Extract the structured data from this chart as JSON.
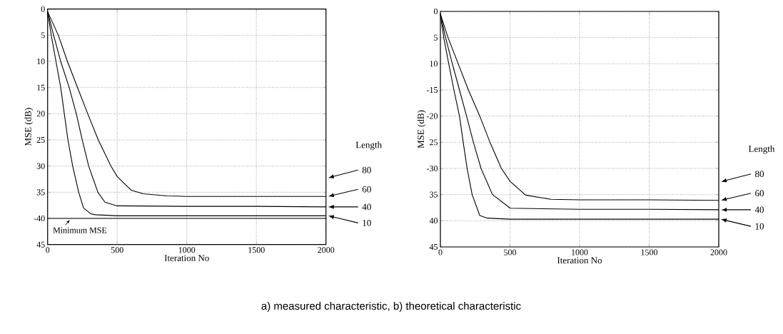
{
  "chart_data": [
    {
      "type": "line",
      "xlabel": "Iteration No",
      "ylabel": "MSE (dB)",
      "legend_title": "Length",
      "xlim": [
        0,
        2000
      ],
      "ylim": [
        -45,
        0
      ],
      "xticks": [
        0,
        500,
        1000,
        1500,
        2000
      ],
      "yticks": [
        {
          "value": 0,
          "label": "0"
        },
        {
          "value": -5,
          "label": "5"
        },
        {
          "value": -10,
          "label": "10"
        },
        {
          "value": -15,
          "label": "15"
        },
        {
          "value": -20,
          "label": "20"
        },
        {
          "value": -25,
          "label": "25"
        },
        {
          "value": -30,
          "label": "30"
        },
        {
          "value": -35,
          "label": "35"
        },
        {
          "value": -40,
          "label": "-40"
        },
        {
          "value": -45,
          "label": "45"
        }
      ],
      "grid": true,
      "legend": "right",
      "line_style": "solid",
      "marker": "none",
      "series": [
        {
          "name": "60",
          "color": "#000000",
          "x": [
            0,
            77,
            142,
            215,
            288,
            364,
            455,
            500,
            600,
            687,
            858,
            1000,
            1500,
            2000
          ],
          "values": [
            -0.5,
            -5,
            -10,
            -15,
            -20,
            -25,
            -30,
            -32,
            -34.6,
            -35.3,
            -35.7,
            -35.8,
            -35.8,
            -35.8
          ]
        },
        {
          "name": "40",
          "color": "#000000",
          "x": [
            0,
            43,
            94,
            155,
            206,
            249,
            295,
            361,
            412,
            498,
            1000,
            1500,
            2000
          ],
          "values": [
            -0.5,
            -5,
            -10,
            -15,
            -20,
            -25,
            -30,
            -35,
            -36.9,
            -37.6,
            -37.7,
            -37.7,
            -37.8
          ]
        },
        {
          "name": "10",
          "color": "#000000",
          "x": [
            0,
            26,
            60,
            94,
            120,
            146,
            180,
            223,
            258,
            309,
            343,
            500,
            1000,
            1500,
            2000
          ],
          "values": [
            -0.5,
            -5,
            -10,
            -15,
            -20,
            -25,
            -30,
            -35,
            -38,
            -39.1,
            -39.3,
            -39.5,
            -39.5,
            -39.5,
            -39.5
          ]
        }
      ],
      "ref_lines": [
        {
          "axis": "y",
          "value": -40,
          "label": "Minimum MSE",
          "color": "#000000",
          "line_style": "solid"
        }
      ],
      "annotations": [
        "80"
      ]
    },
    {
      "type": "line",
      "xlabel": "Iteration No",
      "ylabel": "MSE (dB)",
      "legend_title": "Length",
      "xlim": [
        0,
        2000
      ],
      "ylim": [
        -45,
        0
      ],
      "xticks": [
        0,
        500,
        1000,
        1500,
        2000
      ],
      "yticks": [
        {
          "value": 0,
          "label": "0"
        },
        {
          "value": -5,
          "label": "5"
        },
        {
          "value": -10,
          "label": "10"
        },
        {
          "value": -15,
          "label": "-15"
        },
        {
          "value": -20,
          "label": "-20"
        },
        {
          "value": -25,
          "label": "25"
        },
        {
          "value": -30,
          "label": "-30"
        },
        {
          "value": -35,
          "label": "35"
        },
        {
          "value": -40,
          "label": "40"
        },
        {
          "value": -45,
          "label": "45"
        }
      ],
      "grid": true,
      "legend": "right",
      "line_style": "solid",
      "marker": "none",
      "series": [
        {
          "name": "60",
          "color": "#000000",
          "x": [
            0,
            55,
            128,
            201,
            283,
            356,
            438,
            502,
            612,
            795,
            1000,
            1500,
            2000
          ],
          "values": [
            -0.5,
            -5,
            -10,
            -15,
            -20,
            -25,
            -30,
            -32.5,
            -35.1,
            -35.9,
            -36,
            -36,
            -36.1
          ]
        },
        {
          "name": "40",
          "color": "#000000",
          "x": [
            0,
            37,
            86,
            137,
            188,
            237,
            292,
            374,
            502,
            1000,
            1500,
            2000
          ],
          "values": [
            -0.5,
            -5,
            -10,
            -15,
            -20,
            -25,
            -30,
            -35,
            -37.6,
            -37.8,
            -37.8,
            -37.9
          ]
        },
        {
          "name": "10",
          "color": "#000000",
          "x": [
            0,
            24,
            60,
            97,
            137,
            164,
            192,
            228,
            283,
            338,
            500,
            1000,
            1500,
            2000
          ],
          "values": [
            -0.5,
            -5,
            -10,
            -15,
            -20,
            -25,
            -30,
            -35,
            -39,
            -39.5,
            -39.7,
            -39.7,
            -39.7,
            -39.7
          ]
        }
      ],
      "annotations": [
        "80",
        "a) measured characteristic, b) theoretical characteristic"
      ]
    }
  ]
}
